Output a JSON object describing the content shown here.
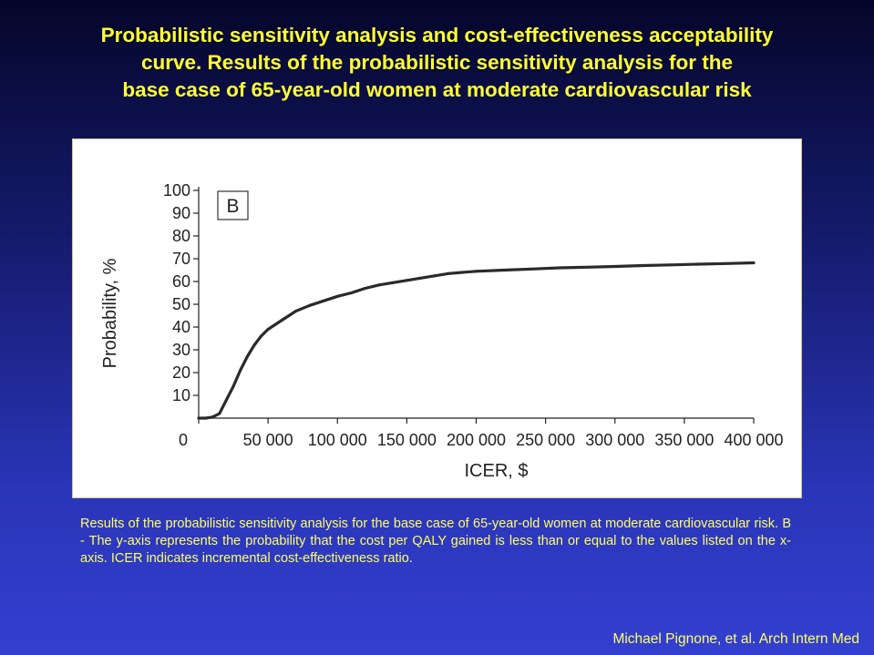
{
  "slide": {
    "title_lines": [
      "Probabilistic sensitivity analysis and cost-effectiveness acceptability",
      "curve. Results of the probabilistic sensitivity analysis for the",
      "base case of 65-year-old women at moderate cardiovascular risk"
    ],
    "caption": "Results of the probabilistic sensitivity analysis for the base case of 65-year-old women at moderate cardiovascular risk.  B - The y-axis represents the probability that the cost per QALY gained is less than or equal to the values listed on the x-axis. ICER indicates incremental cost-effectiveness ratio.",
    "credit": "Michael Pignone, et al. Arch Intern Med"
  },
  "colors": {
    "title": "#ffff33",
    "caption": "#ffff66",
    "curve": "#2a2a2a"
  },
  "chart_data": {
    "type": "line",
    "panel_label": "B",
    "xlabel": "ICER, $",
    "ylabel": "Probability, %",
    "xlim": [
      0,
      400000
    ],
    "ylim": [
      0,
      100
    ],
    "x_ticks": [
      0,
      50000,
      100000,
      150000,
      200000,
      250000,
      300000,
      350000,
      400000
    ],
    "x_tick_labels": [
      "0",
      "50 000",
      "100 000",
      "150 000",
      "200 000",
      "250 000",
      "300 000",
      "350 000",
      "400 000"
    ],
    "y_ticks": [
      10,
      20,
      30,
      40,
      50,
      60,
      70,
      80,
      90,
      100
    ],
    "y_tick_labels": [
      "10",
      "20",
      "30",
      "40",
      "50",
      "60",
      "70",
      "80",
      "90",
      "100"
    ],
    "grid": false,
    "series": [
      {
        "x": [
          0,
          5000,
          10000,
          15000,
          20000,
          25000,
          30000,
          35000,
          40000,
          45000,
          50000,
          55000,
          60000,
          65000,
          70000,
          80000,
          90000,
          100000,
          110000,
          120000,
          130000,
          140000,
          150000,
          160000,
          170000,
          180000,
          190000,
          200000,
          220000,
          240000,
          260000,
          280000,
          300000,
          320000,
          340000,
          360000,
          380000,
          400000
        ],
        "y": [
          0,
          0,
          0.5,
          2,
          8,
          14,
          21,
          27,
          32,
          36,
          39,
          41,
          43,
          45,
          47,
          49.5,
          51.5,
          53.5,
          55,
          57,
          58.5,
          59.5,
          60.5,
          61.5,
          62.5,
          63.5,
          64,
          64.5,
          65,
          65.5,
          66,
          66.3,
          66.6,
          67,
          67.3,
          67.6,
          67.9,
          68.2
        ]
      }
    ]
  }
}
